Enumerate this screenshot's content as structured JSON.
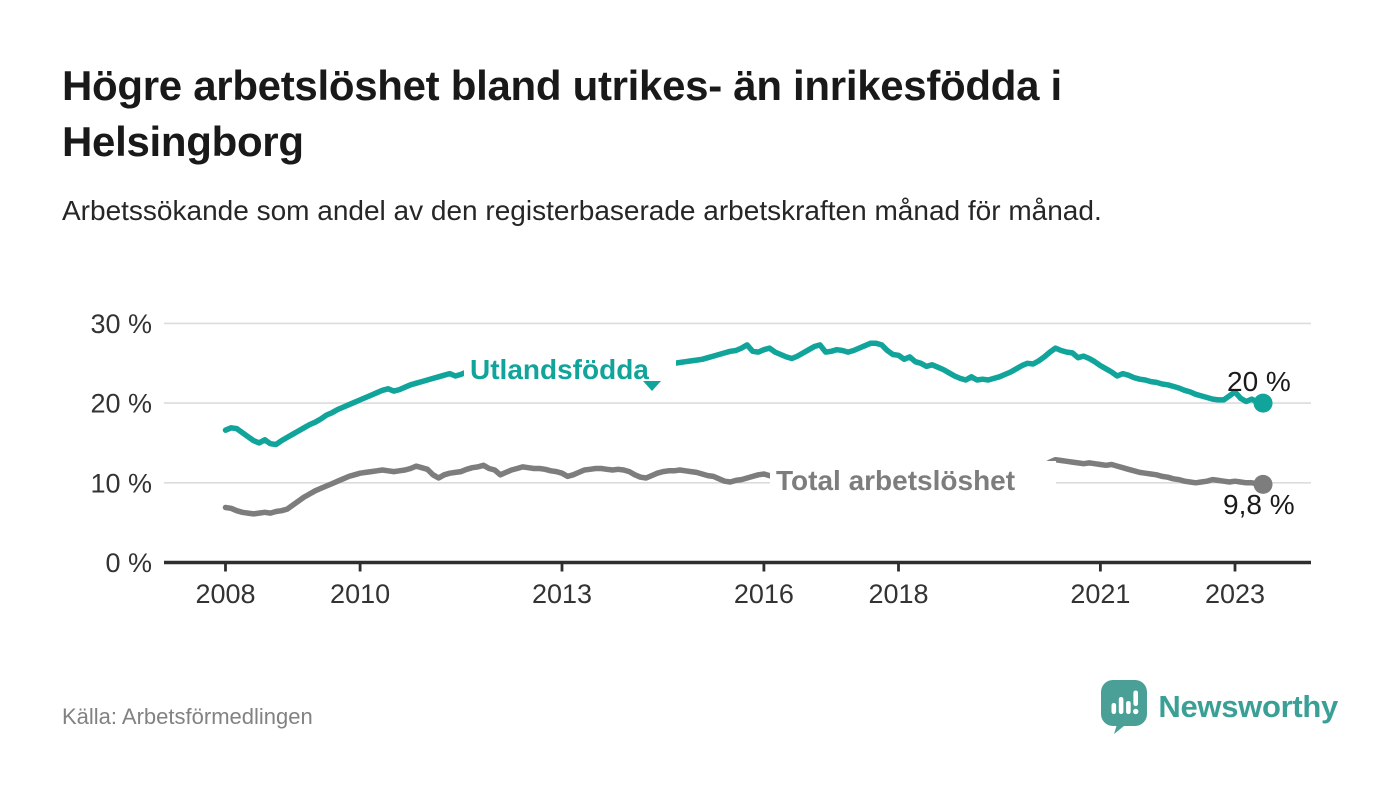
{
  "page": {
    "title": "Högre arbetslöshet bland utrikes- än inrikesfödda i Helsingborg",
    "subtitle": "Arbetssökande som andel av den registerbaserade arbetskraften månad för månad.",
    "source": "Källa: Arbetsförmedlingen",
    "brand": "Newsworthy"
  },
  "colors": {
    "accent_teal": "#10a49b",
    "logo_teal": "#4aa096",
    "brand_text_teal": "#3aa096",
    "series_gray": "#7d7d7d",
    "grid": "#dcdcdc",
    "axis": "#2e2e2e",
    "tick_text": "#333333",
    "end_label_text": "#1a1a1a"
  },
  "chart_data": {
    "type": "line",
    "title": "Högre arbetslöshet bland utrikes- än inrikesfödda i Helsingborg",
    "xlabel": "",
    "ylabel": "",
    "unit": "%",
    "x_start": {
      "year": 2008,
      "month": 1
    },
    "x_end": {
      "year": 2023,
      "month": 6
    },
    "x_frequency": "monthly",
    "x_tick_years": [
      2008,
      2010,
      2013,
      2016,
      2018,
      2021,
      2023
    ],
    "y_ticks": [
      {
        "value": 0,
        "label": "0 %"
      },
      {
        "value": 10,
        "label": "10 %"
      },
      {
        "value": 20,
        "label": "20 %"
      },
      {
        "value": 30,
        "label": "30 %"
      }
    ],
    "ylim": [
      0,
      32
    ],
    "grid": "horizontal",
    "legend_position": "inline-labels",
    "series": [
      {
        "name": "Utlandsfödda",
        "color": "#10a49b",
        "end_label": "20 %",
        "values": [
          16.6,
          16.9,
          16.8,
          16.3,
          15.8,
          15.3,
          15.0,
          15.4,
          14.9,
          14.8,
          15.3,
          15.7,
          16.1,
          16.5,
          16.9,
          17.3,
          17.6,
          18.0,
          18.5,
          18.8,
          19.2,
          19.5,
          19.8,
          20.1,
          20.4,
          20.7,
          21.0,
          21.3,
          21.6,
          21.8,
          21.5,
          21.7,
          22.0,
          22.3,
          22.5,
          22.7,
          22.9,
          23.1,
          23.3,
          23.5,
          23.7,
          23.4,
          23.6,
          23.9,
          24.1,
          24.3,
          24.4,
          24.5,
          24.6,
          24.7,
          24.6,
          24.7,
          24.8,
          24.9,
          24.8,
          24.9,
          25.0,
          24.9,
          24.8,
          24.9,
          25.0,
          24.9,
          24.8,
          24.9,
          25.0,
          25.1,
          25.0,
          24.9,
          24.8,
          24.7,
          24.8,
          24.9,
          24.8,
          24.7,
          24.6,
          24.5,
          24.6,
          24.7,
          24.7,
          24.8,
          25.0,
          25.1,
          25.2,
          25.3,
          25.4,
          25.5,
          25.7,
          25.9,
          26.1,
          26.3,
          26.5,
          26.6,
          26.9,
          27.3,
          26.5,
          26.4,
          26.7,
          26.9,
          26.4,
          26.1,
          25.8,
          25.6,
          25.9,
          26.3,
          26.7,
          27.1,
          27.3,
          26.4,
          26.5,
          26.7,
          26.6,
          26.4,
          26.6,
          26.9,
          27.2,
          27.5,
          27.5,
          27.3,
          26.6,
          26.1,
          26.0,
          25.5,
          25.8,
          25.2,
          25.0,
          24.6,
          24.8,
          24.5,
          24.2,
          23.8,
          23.4,
          23.1,
          22.9,
          23.3,
          22.9,
          23.0,
          22.9,
          23.1,
          23.3,
          23.6,
          23.9,
          24.3,
          24.7,
          25.0,
          24.9,
          25.3,
          25.8,
          26.4,
          26.9,
          26.6,
          26.4,
          26.3,
          25.7,
          25.9,
          25.6,
          25.2,
          24.7,
          24.3,
          23.9,
          23.4,
          23.7,
          23.5,
          23.2,
          23.0,
          22.9,
          22.7,
          22.6,
          22.4,
          22.3,
          22.1,
          21.9,
          21.6,
          21.4,
          21.1,
          20.9,
          20.7,
          20.5,
          20.4,
          20.4,
          20.9,
          21.4,
          20.6,
          20.2,
          20.5,
          20.1,
          20.0
        ]
      },
      {
        "name": "Total arbetslöshet",
        "color": "#7d7d7d",
        "end_label": "9,8 %",
        "values": [
          6.9,
          6.8,
          6.5,
          6.3,
          6.2,
          6.1,
          6.2,
          6.3,
          6.2,
          6.4,
          6.5,
          6.7,
          7.2,
          7.7,
          8.2,
          8.6,
          9.0,
          9.3,
          9.6,
          9.9,
          10.2,
          10.5,
          10.8,
          11.0,
          11.2,
          11.3,
          11.4,
          11.5,
          11.6,
          11.5,
          11.4,
          11.5,
          11.6,
          11.8,
          12.1,
          11.9,
          11.7,
          11.0,
          10.6,
          11.0,
          11.2,
          11.3,
          11.4,
          11.7,
          11.9,
          12.0,
          12.2,
          11.8,
          11.6,
          11.0,
          11.3,
          11.6,
          11.8,
          12.0,
          11.9,
          11.8,
          11.8,
          11.7,
          11.5,
          11.4,
          11.2,
          10.8,
          11.0,
          11.3,
          11.6,
          11.7,
          11.8,
          11.8,
          11.7,
          11.6,
          11.7,
          11.6,
          11.4,
          11.0,
          10.7,
          10.6,
          10.9,
          11.2,
          11.4,
          11.5,
          11.5,
          11.6,
          11.5,
          11.4,
          11.3,
          11.1,
          10.9,
          10.8,
          10.5,
          10.2,
          10.1,
          10.3,
          10.4,
          10.6,
          10.8,
          11.0,
          11.1,
          10.9,
          10.8,
          10.7,
          10.6,
          10.5,
          10.4,
          10.5,
          10.6,
          10.5,
          10.4,
          10.3,
          10.3,
          10.2,
          10.3,
          10.4,
          10.3,
          10.5,
          10.6,
          10.5,
          10.4,
          10.3,
          10.4,
          10.5,
          10.4,
          10.3,
          10.2,
          10.1,
          10.0,
          9.9,
          10.0,
          10.1,
          10.0,
          9.9,
          10.0,
          10.1,
          10.2,
          10.1,
          10.2,
          10.3,
          10.4,
          10.5,
          10.6,
          10.7,
          10.8,
          10.9,
          11.0,
          11.2,
          11.5,
          11.8,
          12.2,
          12.6,
          12.9,
          12.8,
          12.7,
          12.6,
          12.5,
          12.4,
          12.5,
          12.4,
          12.3,
          12.2,
          12.3,
          12.1,
          11.9,
          11.7,
          11.5,
          11.3,
          11.2,
          11.1,
          11.0,
          10.8,
          10.7,
          10.5,
          10.4,
          10.2,
          10.1,
          10.0,
          10.1,
          10.2,
          10.4,
          10.3,
          10.2,
          10.1,
          10.2,
          10.1,
          10.0,
          10.0,
          9.9,
          9.8
        ]
      }
    ]
  }
}
